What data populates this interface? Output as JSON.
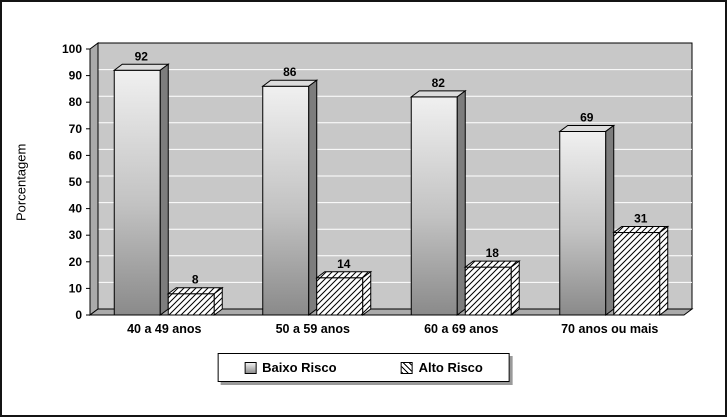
{
  "chart_data": {
    "type": "bar",
    "title": "",
    "categories": [
      "40 a 49 anos",
      "50 a 59 anos",
      "60 a 69 anos",
      "70 anos ou mais"
    ],
    "series": [
      {
        "name": "Baixo Risco",
        "values": [
          92,
          86,
          82,
          69
        ],
        "style": "gray-gradient"
      },
      {
        "name": "Alto Risco",
        "values": [
          8,
          14,
          18,
          31
        ],
        "style": "diagonal-hatch"
      }
    ],
    "xlabel": "",
    "ylabel": "Porcentagem",
    "ylim": [
      0,
      100
    ],
    "ytick_step": 10,
    "yticks": [
      0,
      10,
      20,
      30,
      40,
      50,
      60,
      70,
      80,
      90,
      100
    ],
    "grid": true,
    "legend_position": "bottom",
    "effect": "3d"
  },
  "colors": {
    "background": "#ffffff",
    "plot_wall": "#c8c8c8",
    "plot_side": "#aaaaaa",
    "gridline": "#ffffff",
    "outline": "#000000",
    "bar_top": "#dcdcdc",
    "bar_side": "#7d7d7d",
    "legend_shadow": "#9a9a9a"
  }
}
